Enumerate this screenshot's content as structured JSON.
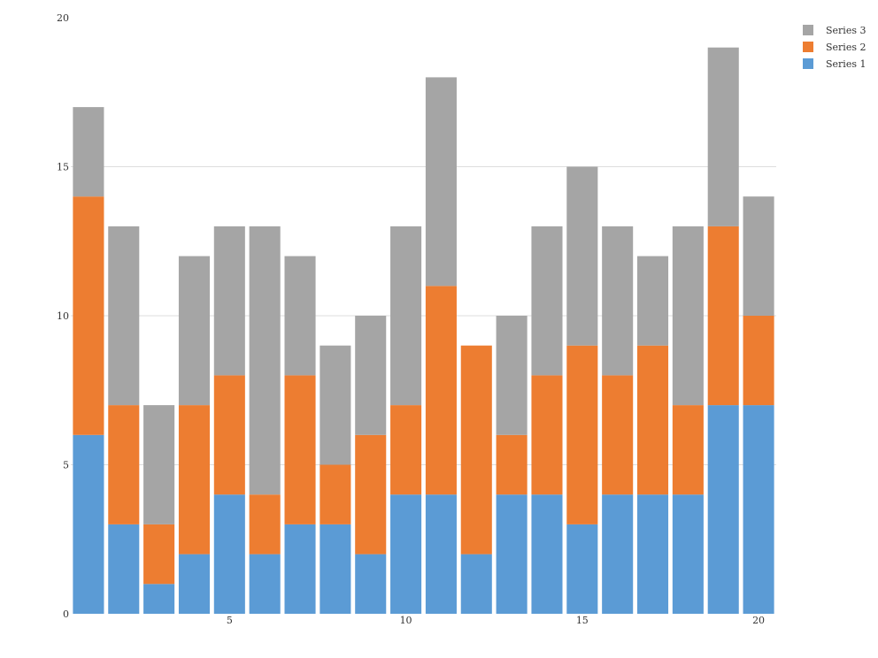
{
  "chart_data": {
    "type": "bar",
    "stacked": true,
    "x": [
      1,
      2,
      3,
      4,
      5,
      6,
      7,
      8,
      9,
      10,
      11,
      12,
      13,
      14,
      15,
      16,
      17,
      18,
      19,
      20
    ],
    "series": [
      {
        "name": "Series 1",
        "color": "#5b9bd5",
        "values": [
          6,
          3,
          1,
          2,
          4,
          2,
          3,
          3,
          2,
          4,
          4,
          2,
          4,
          4,
          3,
          4,
          4,
          4,
          7,
          7
        ]
      },
      {
        "name": "Series 2",
        "color": "#ed7d31",
        "values": [
          8,
          4,
          2,
          5,
          4,
          2,
          5,
          2,
          4,
          3,
          7,
          7,
          2,
          4,
          6,
          4,
          5,
          3,
          6,
          3
        ]
      },
      {
        "name": "Series 3",
        "color": "#a5a5a5",
        "values": [
          3,
          6,
          4,
          5,
          5,
          9,
          4,
          4,
          4,
          6,
          7,
          0,
          4,
          5,
          6,
          5,
          3,
          6,
          6,
          4
        ]
      }
    ],
    "xticks": [
      "5",
      "10",
      "15",
      "20"
    ],
    "yticks": [
      "0",
      "5",
      "10",
      "15",
      "20"
    ],
    "ylim": [
      0,
      20
    ],
    "xlim": [
      0.5,
      20.5
    ],
    "grid": "horizontal",
    "legend": "top-right",
    "title": "",
    "xlabel": "",
    "ylabel": ""
  }
}
